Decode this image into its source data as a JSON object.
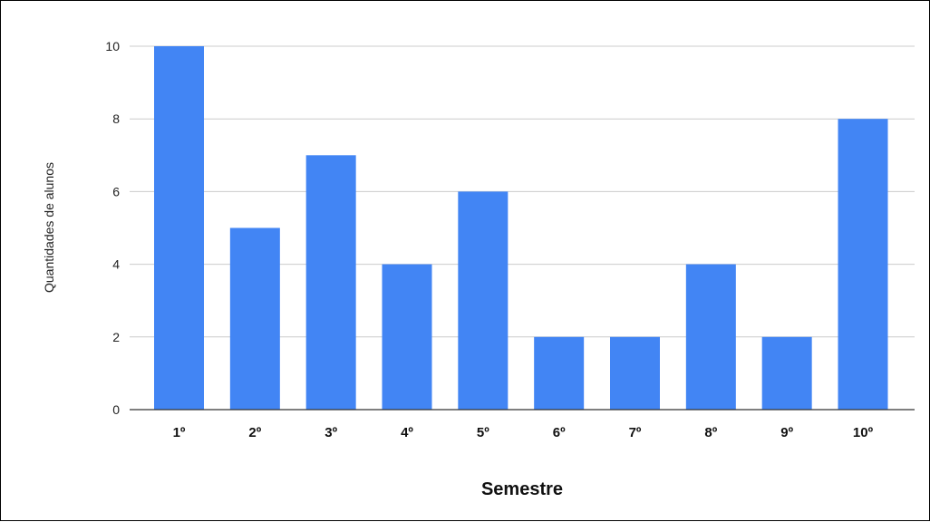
{
  "chart_data": {
    "type": "bar",
    "title": "",
    "xlabel": "Semestre",
    "ylabel": "Quantidades de alunos",
    "categories": [
      "1º",
      "2º",
      "3º",
      "4º",
      "5º",
      "6º",
      "7º",
      "8º",
      "9º",
      "10º"
    ],
    "values": [
      10,
      5,
      7,
      4,
      6,
      2,
      2,
      4,
      2,
      8
    ],
    "ylim": [
      0,
      10
    ],
    "yticks": [
      "0",
      "2",
      "4",
      "6",
      "8",
      "10"
    ],
    "grid": true,
    "legend": "none",
    "bar_color": "#4285F4",
    "grid_color": "#cccccc",
    "axis_color": "#333333"
  }
}
